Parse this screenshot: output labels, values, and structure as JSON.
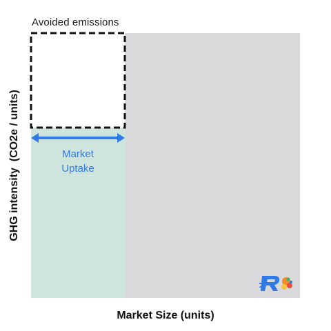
{
  "labels": {
    "avoided_emissions": "Avoided emissions",
    "market_uptake_line1": "Market",
    "market_uptake_line2": "Uptake",
    "x_axis": "Market Size (units)",
    "y_axis": "GHG intensity  (CO2e / units)"
  },
  "colors": {
    "market_area": "#d9d9dc",
    "uptake_area": "#cfe4dc",
    "avoided_box": "#ffffff",
    "dash_border": "#111111",
    "arrow": "#2f7ae5",
    "text": "#111111",
    "logo_blue": "#2f7ae5"
  },
  "icons": {
    "logo": "brand-logo-icon",
    "arrow": "double-headed-arrow-icon"
  }
}
